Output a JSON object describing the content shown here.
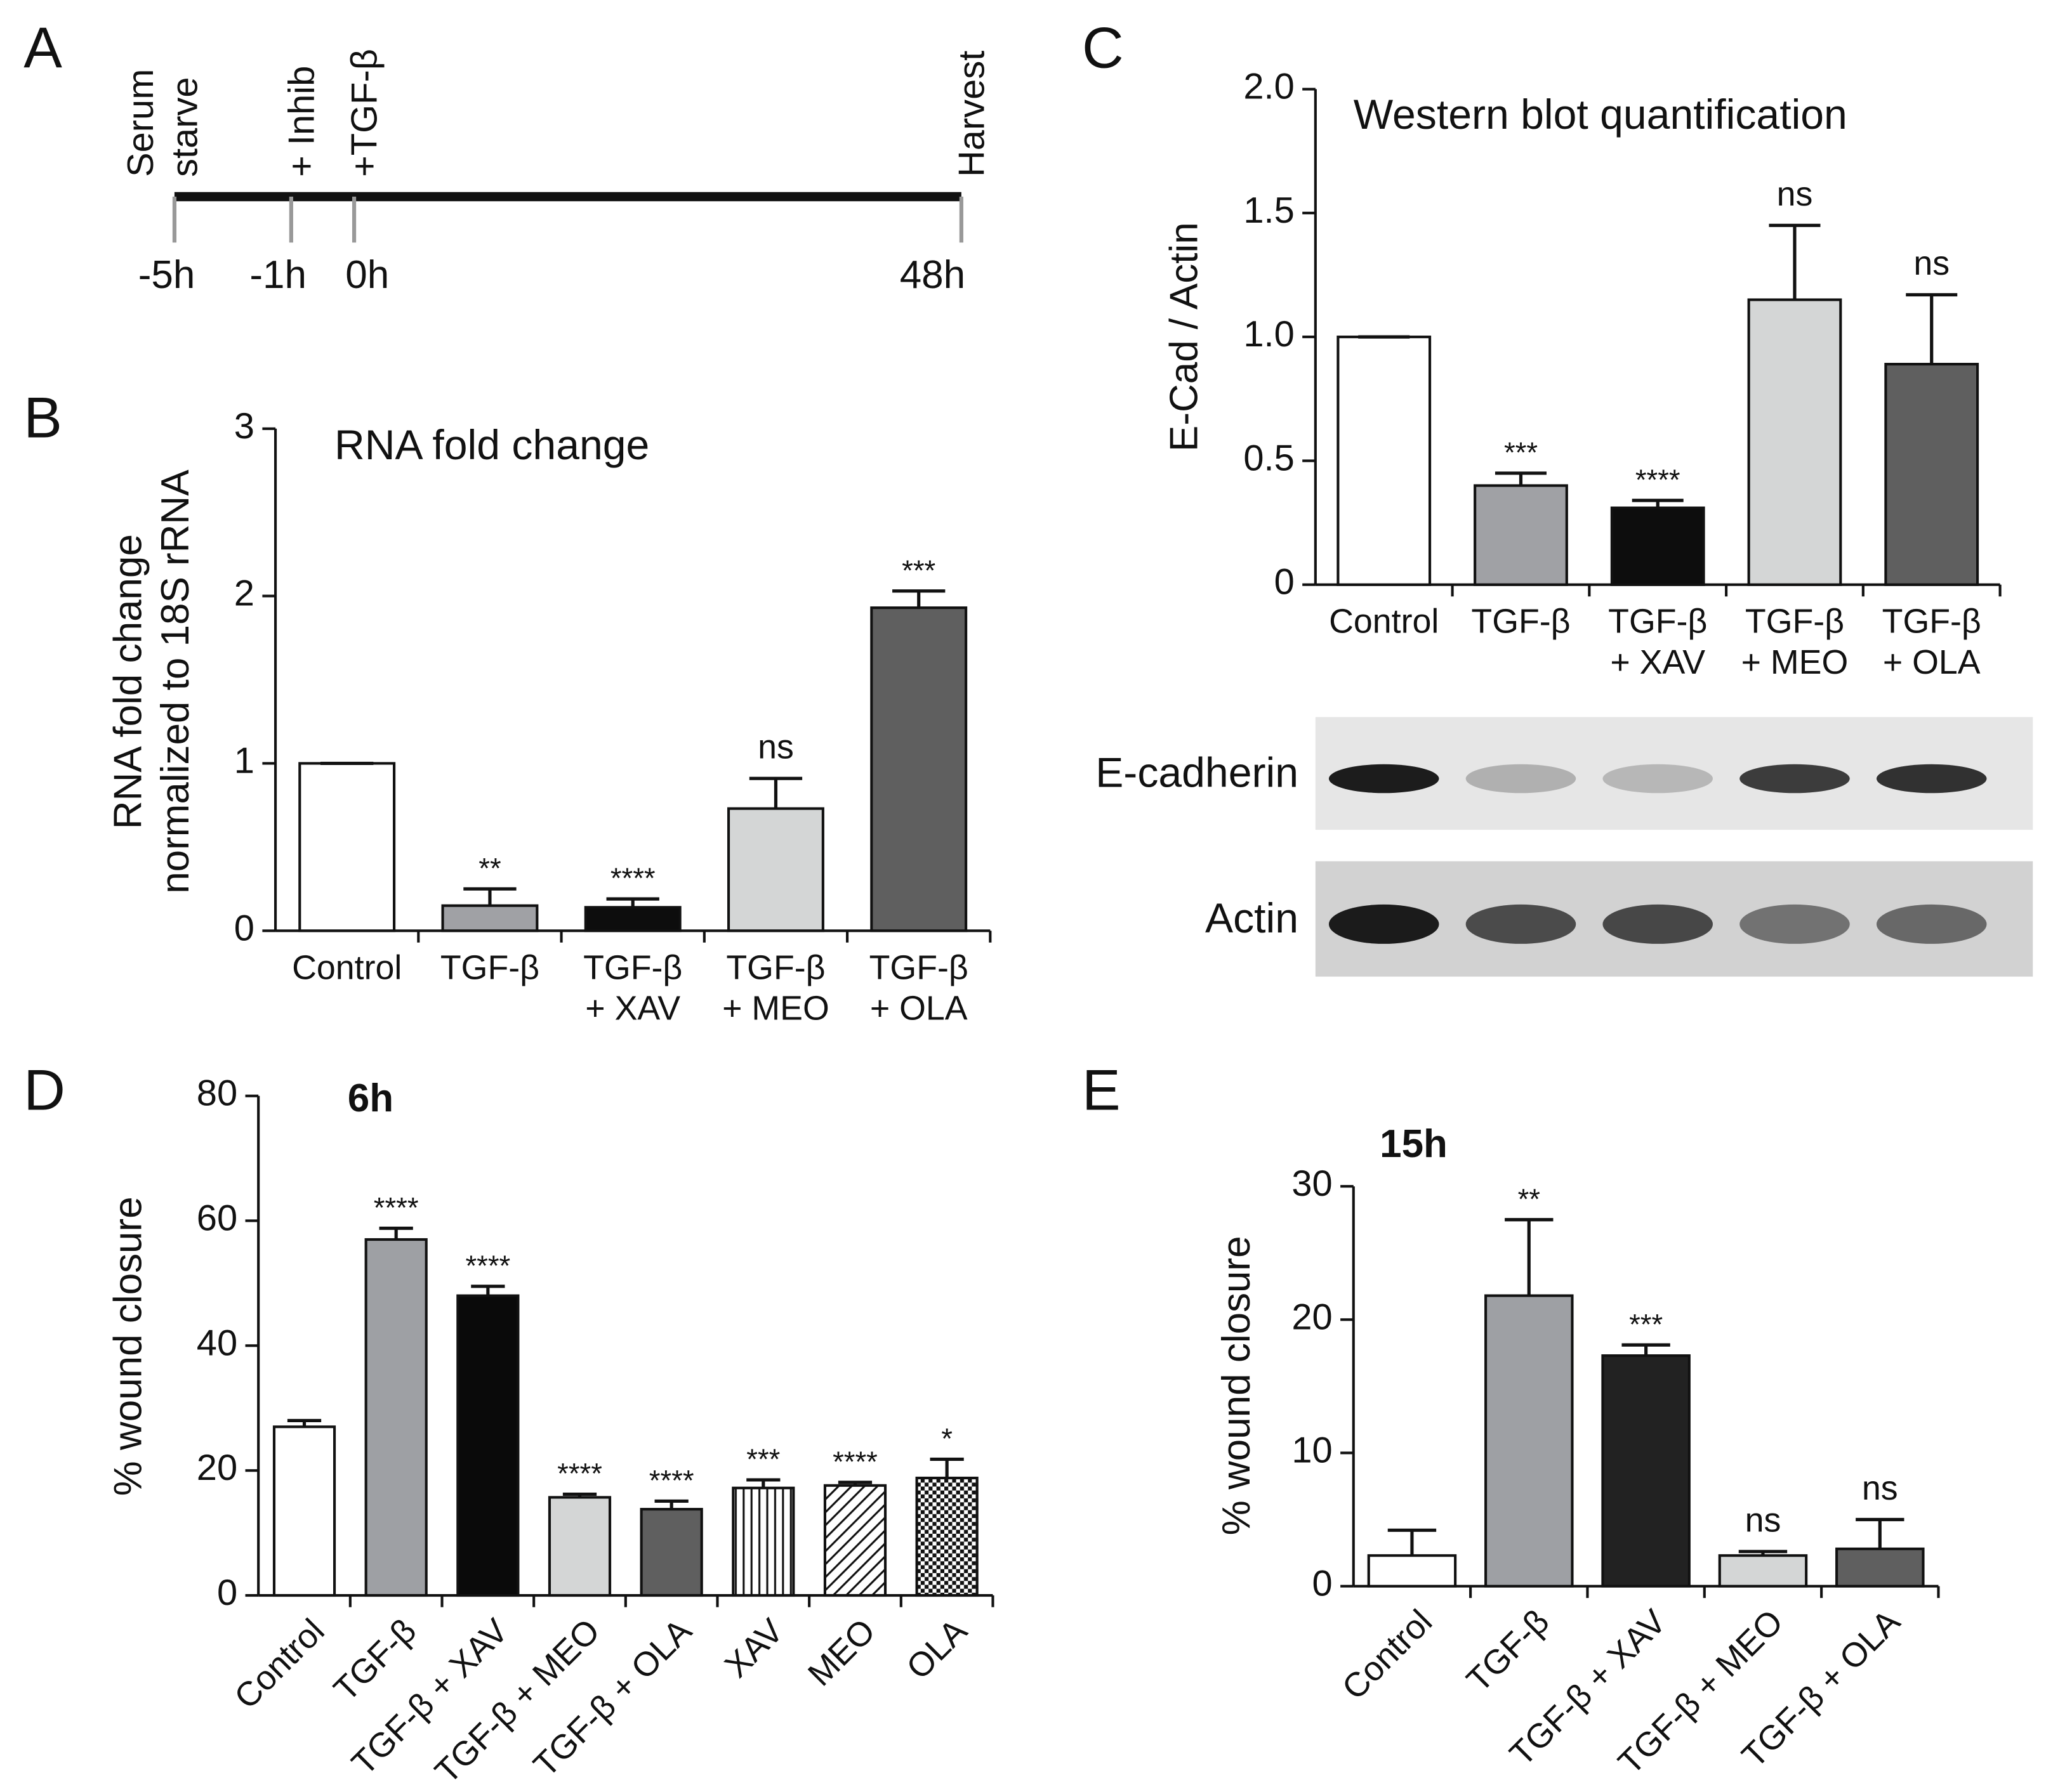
{
  "chart_data": [
    {
      "type": "timeline",
      "panel": "A",
      "events": [
        {
          "text": "Serum\nstarve",
          "tick": {
            "value": -5,
            "label": "-5h"
          }
        },
        {
          "text": "+ Inhib",
          "tick": {
            "value": -1,
            "label": "-1h"
          }
        },
        {
          "text": "+TGF-β",
          "tick": {
            "value": 0,
            "label": "0h"
          }
        },
        {
          "text": "Harvest",
          "tick": {
            "value": 48,
            "label": "48h"
          }
        }
      ]
    },
    {
      "type": "bar",
      "panel": "B",
      "title": "RNA fold change",
      "ylabel": "RNA fold change\nnormalized to 18S rRNA",
      "categories": [
        "Control",
        "TGF-β",
        "TGF-β\n+ XAV",
        "TGF-β\n+ MEO",
        "TGF-β\n+ OLA"
      ],
      "values": [
        1.0,
        0.15,
        0.14,
        0.73,
        1.93
      ],
      "errors": [
        0,
        0.1,
        0.05,
        0.18,
        0.1
      ],
      "annotations": [
        null,
        "**",
        "****",
        "ns",
        "***"
      ],
      "colors": [
        "#ffffff",
        "#a0a1a5",
        "#0d0d0d",
        "#d4d6d6",
        "#5f5f5f"
      ],
      "ylim": [
        0,
        3
      ],
      "yticks": [
        0,
        1,
        2,
        3
      ]
    },
    {
      "type": "bar",
      "panel": "C",
      "title": "Western blot quantification",
      "ylabel": "E-Cad / Actin",
      "categories": [
        "Control",
        "TGF-β",
        "TGF-β\n+ XAV",
        "TGF-β\n+ MEO",
        "TGF-β\n+ OLA"
      ],
      "values": [
        1.0,
        0.4,
        0.31,
        1.15,
        0.89
      ],
      "errors": [
        0,
        0.05,
        0.03,
        0.3,
        0.28
      ],
      "annotations": [
        null,
        "***",
        "****",
        "ns",
        "ns"
      ],
      "colors": [
        "#ffffff",
        "#a0a1a5",
        "#0d0d0d",
        "#d4d6d6",
        "#5f5f5f"
      ],
      "ylim": [
        0,
        2
      ],
      "yticks": [
        0,
        0.5,
        {
          "value": 1,
          "label": "1.0"
        },
        1.5,
        {
          "value": 2,
          "label": "2.0"
        }
      ],
      "blot_rows": [
        "E-cadherin",
        "Actin"
      ]
    },
    {
      "type": "bar",
      "panel": "D",
      "title": "6h",
      "ylabel": "% wound closure",
      "categories": [
        "Control",
        "TGF-β",
        "TGF-β + XAV",
        "TGF-β + MEO",
        "TGF-β + OLA",
        "XAV",
        "MEO",
        "OLA"
      ],
      "values": [
        27,
        57,
        48,
        15.7,
        13.8,
        17.2,
        17.6,
        18.8
      ],
      "errors": [
        1,
        1.8,
        1.5,
        0.5,
        1.3,
        1.3,
        0.5,
        3
      ],
      "annotations": [
        null,
        "****",
        "****",
        "****",
        "****",
        "***",
        "****",
        "*"
      ],
      "colors": [
        "#ffffff",
        "#9ea0a4",
        "#0a0a0a",
        "#d4d6d6",
        "#5f5f5f",
        "#ffffff",
        "#ffffff",
        "#ffffff"
      ],
      "patterns": [
        null,
        null,
        null,
        null,
        null,
        "vertical",
        "diagonal",
        "checker"
      ],
      "ylim": [
        0,
        80
      ],
      "yticks": [
        0,
        20,
        40,
        60,
        80
      ]
    },
    {
      "type": "bar",
      "panel": "E",
      "title": "15h",
      "ylabel": "% wound closure",
      "categories": [
        "Control",
        "TGF-β",
        "TGF-β + XAV",
        "TGF-β + MEO",
        "TGF-β + OLA"
      ],
      "values": [
        2.3,
        21.8,
        17.3,
        2.3,
        2.8
      ],
      "errors": [
        1.9,
        5.7,
        0.8,
        0.3,
        2.2
      ],
      "annotations": [
        null,
        "**",
        "***",
        "ns",
        "ns"
      ],
      "colors": [
        "#ffffff",
        "#9ea0a4",
        "#222222",
        "#d4d6d6",
        "#5f5f5f"
      ],
      "ylim": [
        0,
        30
      ],
      "yticks": [
        0,
        10,
        20,
        30
      ]
    }
  ]
}
